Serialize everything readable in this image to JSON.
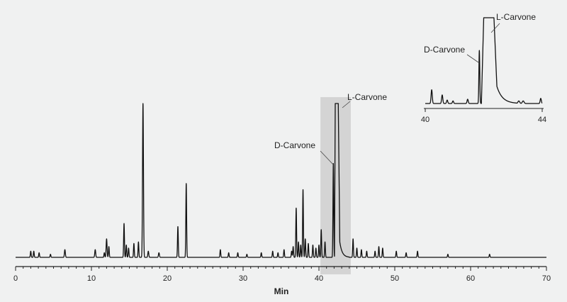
{
  "chart_data": [
    {
      "type": "line",
      "title": "",
      "xlabel": "Min",
      "ylabel": "",
      "xlim": [
        0,
        70
      ],
      "ylim": [
        0,
        100
      ],
      "grid": false,
      "legend": "none",
      "x_ticks": [
        0,
        10,
        20,
        30,
        40,
        50,
        60,
        70
      ],
      "highlight_region": {
        "x_range": [
          40.2,
          44.2
        ],
        "color": "#d4d4d4"
      },
      "line_color": "#111111",
      "baseline": 2,
      "peaks": [
        [
          2.0,
          4,
          0.05
        ],
        [
          2.4,
          4,
          0.05
        ],
        [
          3.1,
          3,
          0.05
        ],
        [
          4.6,
          2,
          0.05
        ],
        [
          6.5,
          5,
          0.06
        ],
        [
          10.5,
          5,
          0.06
        ],
        [
          11.7,
          3,
          0.05
        ],
        [
          12.0,
          12,
          0.06
        ],
        [
          12.3,
          7,
          0.05
        ],
        [
          14.3,
          22,
          0.05
        ],
        [
          14.6,
          8,
          0.05
        ],
        [
          14.9,
          6,
          0.05
        ],
        [
          15.6,
          9,
          0.05
        ],
        [
          16.2,
          10,
          0.05
        ],
        [
          16.8,
          100,
          0.06
        ],
        [
          17.5,
          4,
          0.06
        ],
        [
          18.9,
          3,
          0.06
        ],
        [
          21.4,
          20,
          0.05
        ],
        [
          22.5,
          48,
          0.05
        ],
        [
          27.0,
          5,
          0.05
        ],
        [
          28.1,
          3,
          0.05
        ],
        [
          29.3,
          3,
          0.05
        ],
        [
          30.5,
          2,
          0.05
        ],
        [
          32.4,
          3,
          0.05
        ],
        [
          33.9,
          4,
          0.05
        ],
        [
          34.6,
          3,
          0.05
        ],
        [
          35.4,
          5,
          0.05
        ],
        [
          36.4,
          4,
          0.05
        ],
        [
          36.6,
          7,
          0.05
        ],
        [
          37.0,
          32,
          0.05
        ],
        [
          37.3,
          10,
          0.05
        ],
        [
          37.6,
          8,
          0.05
        ],
        [
          37.9,
          44,
          0.05
        ],
        [
          38.2,
          12,
          0.05
        ],
        [
          38.6,
          9,
          0.05
        ],
        [
          39.2,
          8,
          0.05
        ],
        [
          39.6,
          6,
          0.05
        ],
        [
          40.0,
          8,
          0.05
        ],
        [
          40.3,
          18,
          0.05
        ],
        [
          40.8,
          10,
          0.05
        ],
        [
          41.9,
          61,
          0.05
        ],
        [
          44.5,
          12,
          0.05
        ],
        [
          45.0,
          6,
          0.05
        ],
        [
          45.6,
          5,
          0.05
        ],
        [
          46.3,
          4,
          0.05
        ],
        [
          47.4,
          4,
          0.05
        ],
        [
          47.9,
          7,
          0.05
        ],
        [
          48.4,
          6,
          0.05
        ],
        [
          50.2,
          4,
          0.05
        ],
        [
          51.5,
          3,
          0.05
        ],
        [
          53.0,
          4,
          0.05
        ],
        [
          57.0,
          2,
          0.05
        ],
        [
          62.5,
          2,
          0.05
        ]
      ],
      "flat_top_peak": {
        "rise": 42.05,
        "top_start": 42.15,
        "top_end": 42.55,
        "fall_to": 42.75,
        "tail_to": 44.0,
        "height": 100,
        "tail_height": 10
      },
      "annotations": [
        {
          "text": "L-Carvone",
          "x": 42.4,
          "y": 100
        },
        {
          "text": "D-Carvone",
          "x": 41.9,
          "y": 61
        }
      ]
    },
    {
      "type": "line",
      "title": "",
      "xlabel": "",
      "ylabel": "",
      "xlim": [
        40,
        44
      ],
      "ylim": [
        0,
        100
      ],
      "grid": false,
      "legend": "none",
      "x_ticks": [
        40,
        44
      ],
      "baseline": 3,
      "peaks": [
        [
          40.22,
          16,
          0.02
        ],
        [
          40.58,
          10,
          0.02
        ],
        [
          40.75,
          4,
          0.02
        ],
        [
          40.95,
          3,
          0.02
        ],
        [
          41.45,
          5,
          0.02
        ],
        [
          41.85,
          62,
          0.015
        ],
        [
          43.2,
          3,
          0.03
        ],
        [
          43.35,
          3,
          0.03
        ],
        [
          43.95,
          6,
          0.02
        ]
      ],
      "flat_top_peak": {
        "rise": 41.92,
        "top_start": 42.0,
        "top_end": 42.35,
        "fall_to": 42.45,
        "tail_to": 43.2,
        "height": 100,
        "tail_height": 20
      },
      "annotations": [
        {
          "text": "L-Carvone",
          "x": 42.35,
          "y": 100
        },
        {
          "text": "D-Carvone",
          "x": 41.85,
          "y": 62
        }
      ]
    }
  ]
}
